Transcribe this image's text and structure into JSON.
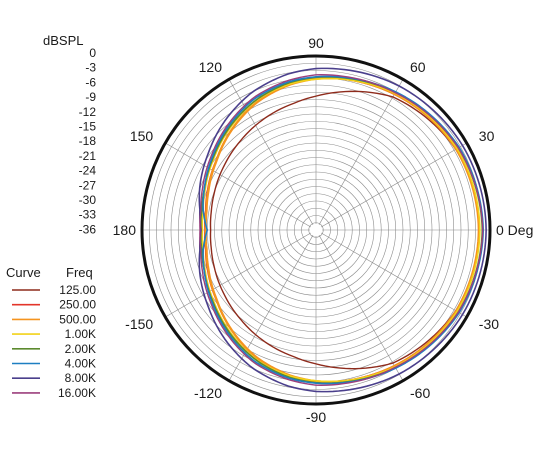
{
  "chart_data": {
    "type": "polar",
    "title": "",
    "radial_axis": {
      "label": "dBSPL",
      "ticks": [
        "0",
        "-3",
        "-6",
        "-9",
        "-12",
        "-15",
        "-18",
        "-21",
        "-24",
        "-27",
        "-30",
        "-33",
        "-36"
      ],
      "range": [
        -36,
        0
      ],
      "grid_ring_step": 1.5
    },
    "angular_axis": {
      "unit": "Deg",
      "labels": [
        {
          "angle": 0,
          "text": "0 Deg"
        },
        {
          "angle": 30,
          "text": "30"
        },
        {
          "angle": 60,
          "text": "60"
        },
        {
          "angle": 90,
          "text": "90"
        },
        {
          "angle": 120,
          "text": "120"
        },
        {
          "angle": 150,
          "text": "150"
        },
        {
          "angle": 180,
          "text": "180"
        },
        {
          "angle": -150,
          "text": "-150"
        },
        {
          "angle": -120,
          "text": "-120"
        },
        {
          "angle": -90,
          "text": "-90"
        },
        {
          "angle": -60,
          "text": "-60"
        },
        {
          "angle": -30,
          "text": "-30"
        }
      ],
      "spoke_step_deg": 30
    },
    "grid": true,
    "legend": {
      "placement": "left",
      "headers": {
        "curve": "Curve",
        "freq": "Freq"
      },
      "entries": [
        {
          "label": "125.00",
          "color": "#8e2b1c"
        },
        {
          "label": "250.00",
          "color": "#e3352a"
        },
        {
          "label": "500.00",
          "color": "#f5941f"
        },
        {
          "label": "1.00K",
          "color": "#f2d21a"
        },
        {
          "label": "2.00K",
          "color": "#5c8a2e"
        },
        {
          "label": "4.00K",
          "color": "#1d7fc1"
        },
        {
          "label": "8.00K",
          "color": "#4a3f8c"
        },
        {
          "label": "16.00K",
          "color": "#9b3f7d"
        }
      ]
    },
    "series": [
      {
        "name": "125.00",
        "color": "#8e2b1c",
        "width": 1.4,
        "points": [
          [
            0,
            -2.2
          ],
          [
            30,
            -2.6
          ],
          [
            60,
            -4.2
          ],
          [
            80,
            -7.0
          ],
          [
            90,
            -8.3
          ],
          [
            100,
            -9.4
          ],
          [
            115,
            -10.6
          ],
          [
            130,
            -11.8
          ],
          [
            145,
            -12.8
          ],
          [
            160,
            -13.6
          ],
          [
            170,
            -14.0
          ],
          [
            180,
            -14.2
          ]
        ]
      },
      {
        "name": "250.00",
        "color": "#e3352a",
        "width": 1.4,
        "points": [
          [
            0,
            -2.2
          ],
          [
            30,
            -2.5
          ],
          [
            60,
            -3.6
          ],
          [
            80,
            -4.3
          ],
          [
            90,
            -4.7
          ],
          [
            100,
            -5.4
          ],
          [
            115,
            -6.9
          ],
          [
            130,
            -8.9
          ],
          [
            145,
            -10.8
          ],
          [
            160,
            -12.1
          ],
          [
            170,
            -12.8
          ],
          [
            180,
            -13.0
          ]
        ]
      },
      {
        "name": "500.00",
        "color": "#f5941f",
        "width": 2.4,
        "points": [
          [
            0,
            -2.3
          ],
          [
            30,
            -2.5
          ],
          [
            60,
            -3.5
          ],
          [
            80,
            -4.2
          ],
          [
            90,
            -4.7
          ],
          [
            100,
            -5.4
          ],
          [
            115,
            -6.9
          ],
          [
            130,
            -8.9
          ],
          [
            145,
            -10.9
          ],
          [
            160,
            -12.3
          ],
          [
            170,
            -13.0
          ],
          [
            180,
            -13.2
          ]
        ]
      },
      {
        "name": "1.00K",
        "color": "#f2d21a",
        "width": 1.6,
        "points": [
          [
            0,
            -2.1
          ],
          [
            30,
            -2.3
          ],
          [
            60,
            -3.3
          ],
          [
            80,
            -4.3
          ],
          [
            90,
            -4.8
          ],
          [
            100,
            -5.3
          ],
          [
            115,
            -6.5
          ],
          [
            130,
            -8.4
          ],
          [
            145,
            -10.2
          ],
          [
            160,
            -11.6
          ],
          [
            170,
            -12.3
          ],
          [
            180,
            -12.5
          ]
        ]
      },
      {
        "name": "2.00K",
        "color": "#5c8a2e",
        "width": 1.6,
        "points": [
          [
            0,
            -1.6
          ],
          [
            30,
            -2.0
          ],
          [
            60,
            -3.1
          ],
          [
            80,
            -4.0
          ],
          [
            90,
            -4.4
          ],
          [
            100,
            -5.0
          ],
          [
            115,
            -6.4
          ],
          [
            130,
            -8.2
          ],
          [
            145,
            -10.0
          ],
          [
            160,
            -11.4
          ],
          [
            170,
            -12.0
          ],
          [
            180,
            -12.2
          ]
        ]
      },
      {
        "name": "4.00K",
        "color": "#1d7fc1",
        "width": 1.6,
        "points": [
          [
            0,
            -1.4
          ],
          [
            30,
            -1.8
          ],
          [
            60,
            -3.0
          ],
          [
            80,
            -3.9
          ],
          [
            90,
            -4.3
          ],
          [
            100,
            -4.8
          ],
          [
            115,
            -6.0
          ],
          [
            130,
            -7.9
          ],
          [
            145,
            -9.8
          ],
          [
            160,
            -11.4
          ],
          [
            170,
            -12.3
          ],
          [
            180,
            -13.5
          ]
        ]
      },
      {
        "name": "8.00K",
        "color": "#4a3f8c",
        "width": 1.6,
        "points": [
          [
            0,
            -0.8
          ],
          [
            30,
            -1.0
          ],
          [
            60,
            -1.6
          ],
          [
            80,
            -2.3
          ],
          [
            90,
            -2.6
          ],
          [
            100,
            -3.2
          ],
          [
            115,
            -4.6
          ],
          [
            130,
            -6.6
          ],
          [
            145,
            -8.7
          ],
          [
            160,
            -10.4
          ],
          [
            170,
            -11.6
          ],
          [
            180,
            -12.2
          ]
        ]
      },
      {
        "name": "16.00K",
        "color": "#9b3f7d",
        "width": 1.4,
        "points": [
          [
            0,
            -1.5
          ],
          [
            30,
            -2.0
          ],
          [
            60,
            -3.2
          ],
          [
            80,
            -3.7
          ],
          [
            90,
            -3.9
          ],
          [
            100,
            -4.5
          ],
          [
            115,
            -5.7
          ],
          [
            130,
            -7.6
          ],
          [
            145,
            -9.5
          ],
          [
            160,
            -11.0
          ],
          [
            170,
            -11.8
          ],
          [
            180,
            -12.0
          ]
        ]
      }
    ]
  }
}
